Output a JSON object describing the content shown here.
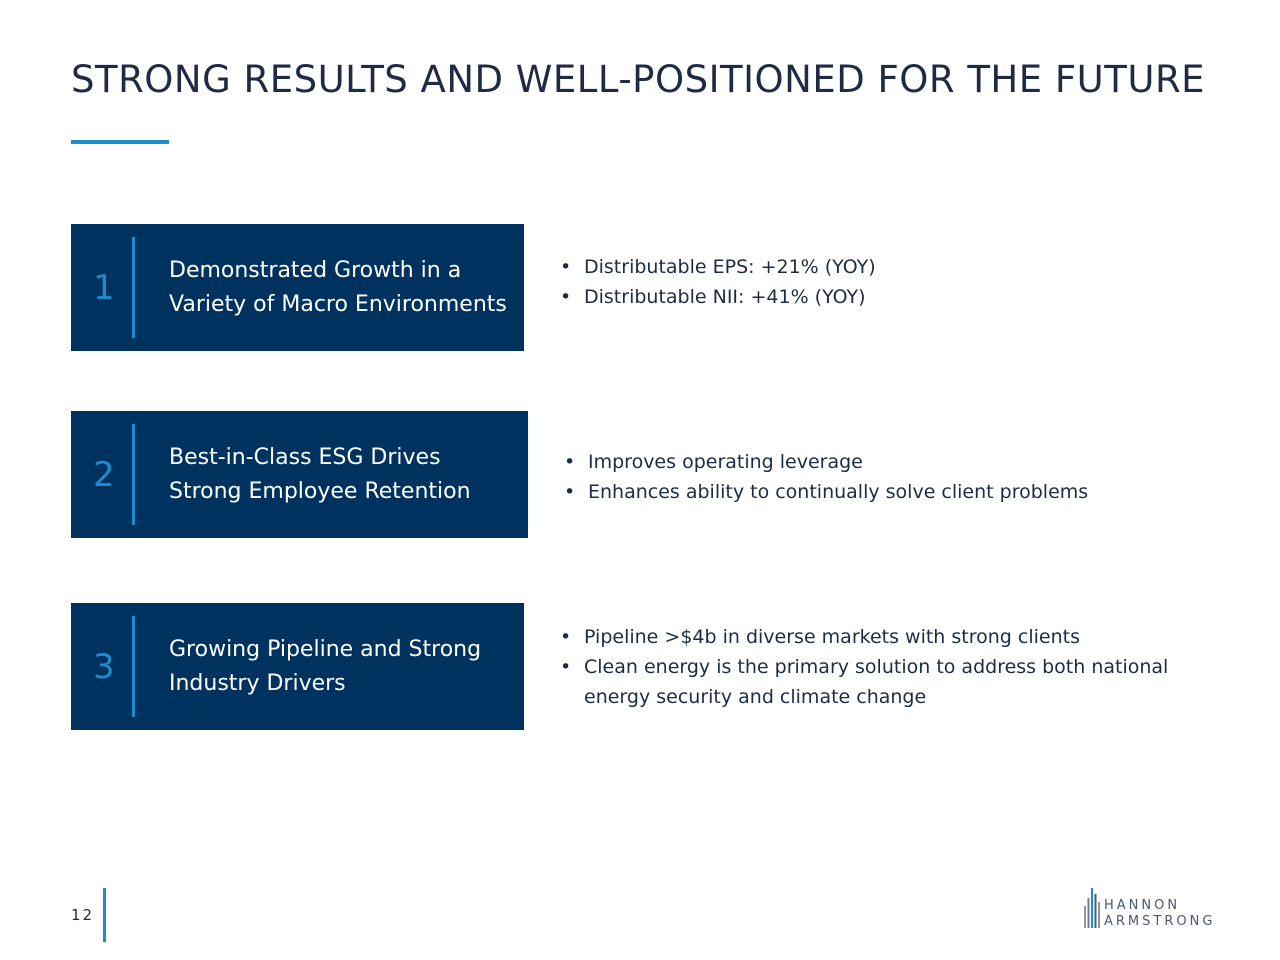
{
  "title": "STRONG RESULTS AND WELL-POSITIONED FOR THE FUTURE",
  "colors": {
    "navy": "#00325f",
    "accent": "#1a8ccf",
    "text": "#1f2b44"
  },
  "sections": [
    {
      "number": "1",
      "heading_line1": "Demonstrated Growth in a",
      "heading_line2": "Variety of Macro Environments",
      "bullets": [
        "Distributable EPS: +21% (YOY)",
        "Distributable NII: +41% (YOY)"
      ]
    },
    {
      "number": "2",
      "heading_line1": "Best-in-Class ESG Drives",
      "heading_line2": "Strong Employee Retention",
      "bullets": [
        "Improves operating leverage",
        "Enhances ability to continually solve client problems"
      ]
    },
    {
      "number": "3",
      "heading_line1": "Growing Pipeline and Strong",
      "heading_line2": "Industry Drivers",
      "bullets": [
        "Pipeline >$4b in diverse markets with strong clients",
        "Clean energy is the primary solution to address both national energy security and climate change"
      ]
    }
  ],
  "footer": {
    "page_number": "12",
    "logo_line1": "HANNON",
    "logo_line2": "ARMSTRONG",
    "logo_icon": "building-bars-icon"
  }
}
